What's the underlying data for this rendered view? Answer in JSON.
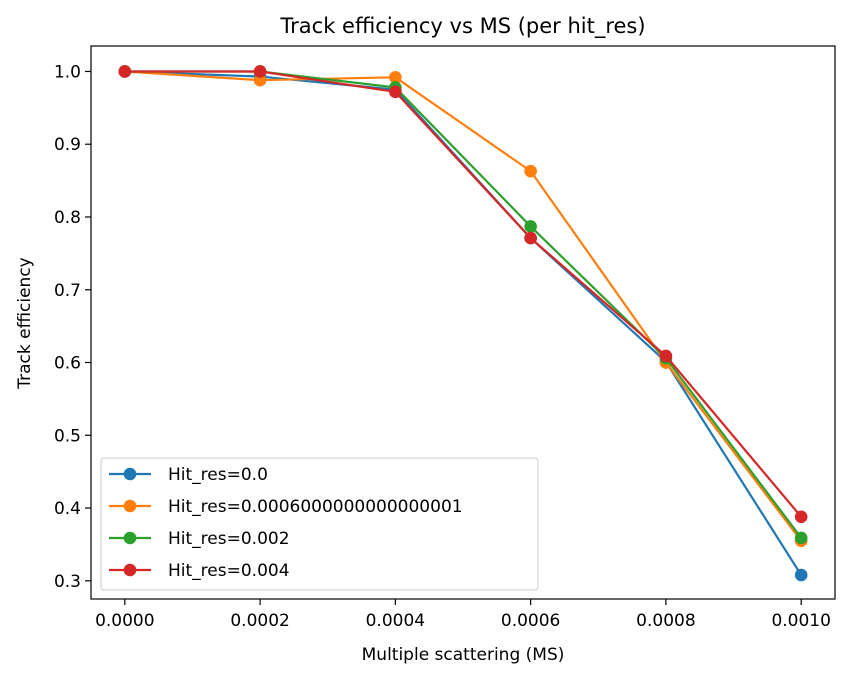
{
  "chart_data": {
    "type": "line",
    "title": "Track efficiency vs MS (per hit_res)",
    "xlabel": "Multiple scattering (MS)",
    "ylabel": "Track efficiency",
    "xlim": [
      -5e-05,
      0.00105
    ],
    "ylim": [
      0.275,
      1.035
    ],
    "xticks": [
      0.0,
      0.0002,
      0.0004,
      0.0006,
      0.0008,
      0.001
    ],
    "xtick_labels": [
      "0.0000",
      "0.0002",
      "0.0004",
      "0.0006",
      "0.0008",
      "0.0010"
    ],
    "yticks": [
      0.3,
      0.4,
      0.5,
      0.6,
      0.7,
      0.8,
      0.9,
      1.0
    ],
    "ytick_labels": [
      "0.3",
      "0.4",
      "0.5",
      "0.6",
      "0.7",
      "0.8",
      "0.9",
      "1.0"
    ],
    "x": [
      0.0,
      0.0002,
      0.0004,
      0.0006,
      0.0008,
      0.001
    ],
    "grid": false,
    "legend_position": "lower-left",
    "series": [
      {
        "name": "Hit_res=0.0",
        "color": "#1f77b4",
        "values": [
          1.0,
          0.993,
          0.975,
          0.771,
          0.601,
          0.308
        ]
      },
      {
        "name": "Hit_res=0.0006000000000000001",
        "color": "#ff7f0e",
        "values": [
          1.0,
          0.988,
          0.992,
          0.863,
          0.6,
          0.355
        ]
      },
      {
        "name": "Hit_res=0.002",
        "color": "#2ca02c",
        "values": [
          1.0,
          1.0,
          0.978,
          0.787,
          0.606,
          0.359
        ]
      },
      {
        "name": "Hit_res=0.004",
        "color": "#d62728",
        "values": [
          1.0,
          1.0,
          0.972,
          0.771,
          0.609,
          0.388
        ]
      }
    ]
  }
}
